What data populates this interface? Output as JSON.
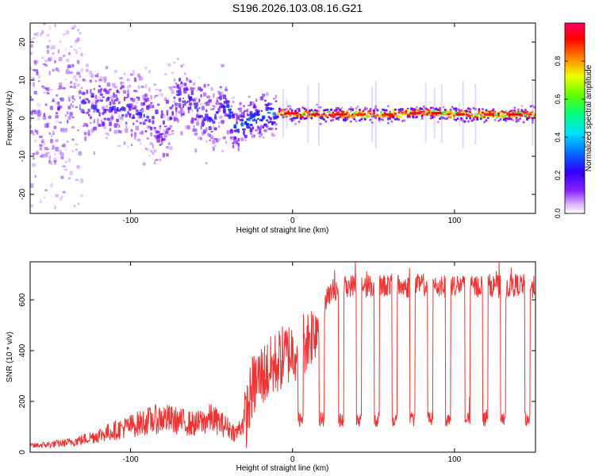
{
  "title": "S196.2026.103.08.16.G21",
  "chart_data": [
    {
      "type": "heatmap",
      "panel": "top",
      "title": "S196.2026.103.08.16.G21",
      "xlabel": "Height of straight line (km)",
      "ylabel": "Frequency (Hz)",
      "xlim": [
        -162,
        150
      ],
      "ylim": [
        -25,
        25
      ],
      "xticks": [
        "-100",
        "0",
        "100"
      ],
      "xtick_values": [
        -100,
        0,
        100
      ],
      "yticks": [
        "-20",
        "-10",
        "0",
        "10",
        "20"
      ],
      "ytick_values": [
        -20,
        -10,
        0,
        10,
        20
      ],
      "ridge": {
        "x": [
          -160,
          -140,
          -120,
          -100,
          -90,
          -80,
          -70,
          -60,
          -50,
          -40,
          -35,
          -30,
          -20,
          -10,
          0,
          20,
          40,
          60,
          80,
          100,
          120,
          140,
          150
        ],
        "y": [
          3,
          4,
          3,
          2,
          1,
          -3,
          7,
          3,
          0,
          3,
          -3,
          -1,
          0.5,
          1.5,
          1,
          1,
          1,
          1,
          1.5,
          1,
          1,
          1,
          1
        ]
      },
      "colorbar": {
        "label": "Normalized spectral amplitude",
        "ticks": [
          "0.0",
          "0.2",
          "0.4",
          "0.6",
          "0.8"
        ],
        "tick_values": [
          0.0,
          0.2,
          0.4,
          0.6,
          0.8
        ],
        "range": [
          0,
          1
        ]
      }
    },
    {
      "type": "line",
      "panel": "bottom",
      "xlabel": "Height of straight line (km)",
      "ylabel": "SNR (10 * v/v)",
      "xlim": [
        -162,
        150
      ],
      "ylim": [
        0,
        750
      ],
      "xticks": [
        "-100",
        "0",
        "100"
      ],
      "xtick_values": [
        -100,
        0,
        100
      ],
      "yticks": [
        "0",
        "200",
        "400",
        "600"
      ],
      "ytick_values": [
        0,
        200,
        400,
        600
      ],
      "series": [
        {
          "name": "SNR",
          "color": "#ee3333",
          "x": [
            -162,
            -150,
            -140,
            -130,
            -120,
            -110,
            -100,
            -90,
            -80,
            -70,
            -60,
            -50,
            -40,
            -35,
            -30,
            -25,
            -20,
            -15,
            -10,
            -5,
            0,
            5,
            10,
            15,
            18,
            20,
            25,
            30,
            40,
            50,
            60,
            70,
            80,
            90,
            100,
            110,
            120,
            130,
            140,
            150
          ],
          "y": [
            20,
            25,
            30,
            40,
            55,
            70,
            85,
            100,
            110,
            100,
            90,
            110,
            80,
            60,
            100,
            250,
            300,
            320,
            350,
            380,
            400,
            420,
            450,
            500,
            560,
            600,
            640,
            650,
            660,
            650,
            660,
            650,
            660,
            650,
            660,
            650,
            660,
            650,
            660,
            650
          ]
        }
      ],
      "dropouts_x": [
        5,
        18,
        30,
        41,
        52,
        63,
        74,
        85,
        96,
        108,
        119,
        130,
        145
      ]
    }
  ],
  "colors": {
    "line": "#ee3333",
    "colormap": [
      "#ffffff",
      "#c080ff",
      "#6a00ff",
      "#0030ff",
      "#00ccff",
      "#00ff66",
      "#f0ff00",
      "#ff8000",
      "#ff0000",
      "#ff0060"
    ]
  }
}
